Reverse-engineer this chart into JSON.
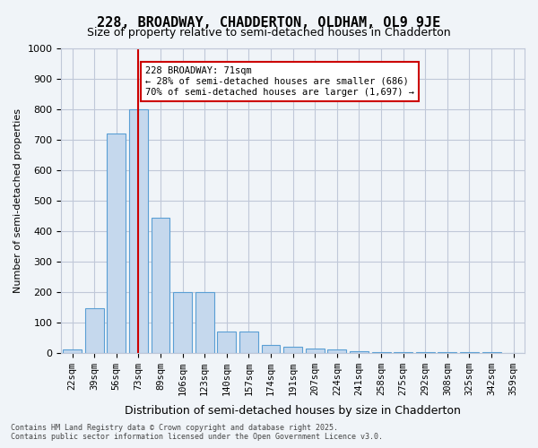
{
  "title": "228, BROADWAY, CHADDERTON, OLDHAM, OL9 9JE",
  "subtitle": "Size of property relative to semi-detached houses in Chadderton",
  "xlabel": "Distribution of semi-detached houses by size in Chadderton",
  "ylabel": "Number of semi-detached properties",
  "bar_color": "#c5d8ed",
  "bar_edge_color": "#5a9fd4",
  "vline_color": "#cc0000",
  "vline_pos": 3,
  "categories": [
    "22sqm",
    "39sqm",
    "56sqm",
    "73sqm",
    "89sqm",
    "106sqm",
    "123sqm",
    "140sqm",
    "157sqm",
    "174sqm",
    "191sqm",
    "207sqm",
    "224sqm",
    "241sqm",
    "258sqm",
    "275sqm",
    "292sqm",
    "308sqm",
    "325sqm",
    "342sqm",
    "359sqm"
  ],
  "values": [
    10,
    145,
    720,
    800,
    445,
    200,
    200,
    70,
    70,
    25,
    20,
    15,
    10,
    5,
    3,
    2,
    1,
    1,
    1,
    1,
    0
  ],
  "ylim": [
    0,
    1000
  ],
  "yticks": [
    0,
    100,
    200,
    300,
    400,
    500,
    600,
    700,
    800,
    900,
    1000
  ],
  "annotation_title": "228 BROADWAY: 71sqm",
  "annotation_line1": "← 28% of semi-detached houses are smaller (686)",
  "annotation_line2": "70% of semi-detached houses are larger (1,697) →",
  "annotation_box_color": "#ffffff",
  "annotation_box_edge": "#cc0000",
  "footer_line1": "Contains HM Land Registry data © Crown copyright and database right 2025.",
  "footer_line2": "Contains public sector information licensed under the Open Government Licence v3.0.",
  "background_color": "#f0f4f8",
  "plot_background": "#ffffff",
  "grid_color": "#c0c8d8"
}
